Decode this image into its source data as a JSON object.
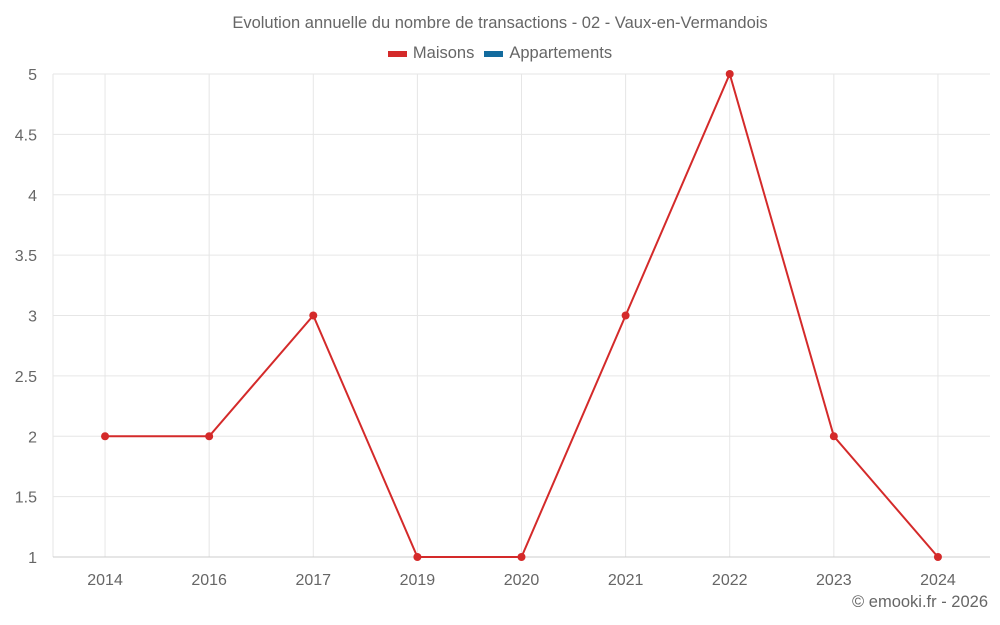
{
  "chart_data": {
    "type": "line",
    "title": "Evolution annuelle du nombre de transactions - 02 - Vaux-en-Vermandois",
    "xlabel": "",
    "ylabel": "",
    "categories": [
      "2014",
      "2016",
      "2017",
      "2019",
      "2020",
      "2021",
      "2022",
      "2023",
      "2024"
    ],
    "series": [
      {
        "name": "Maisons",
        "color": "#d42a2a",
        "values": [
          2,
          2,
          3,
          1,
          1,
          3,
          5,
          2,
          1
        ]
      },
      {
        "name": "Appartements",
        "color": "#136b9e",
        "values": []
      }
    ],
    "ylim": [
      1,
      5
    ],
    "yticks": [
      "1",
      "1.5",
      "2",
      "2.5",
      "3",
      "3.5",
      "4",
      "4.5",
      "5"
    ],
    "grid": true,
    "legend_position": "top"
  },
  "legend": [
    {
      "label": "Maisons",
      "color": "#d42a2a"
    },
    {
      "label": "Appartements",
      "color": "#136b9e"
    }
  ],
  "credits": "© emooki.fr - 2026"
}
